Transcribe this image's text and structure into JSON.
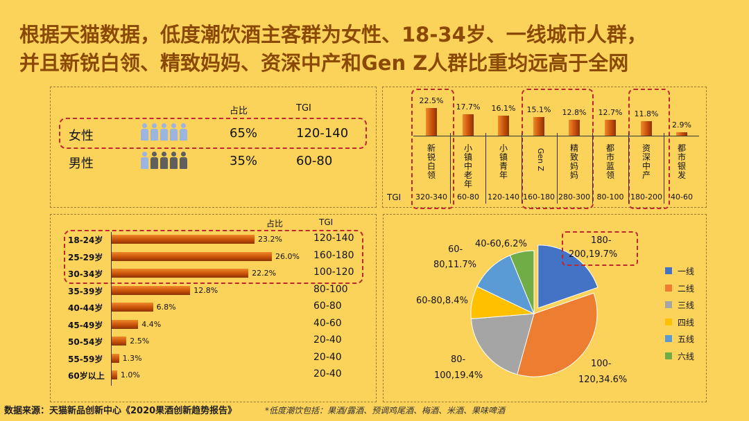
{
  "title": {
    "line1": "根据天猫数据，低度潮饮酒主客群为女性、18-34岁、一线城市人群，",
    "line2": "并且新锐白领、精致妈妈、资深中产和Gen Z人群比重均远高于全网"
  },
  "gender": {
    "col_share": "占比",
    "col_tgi": "TGI",
    "rows": [
      {
        "label": "女性",
        "share": "65%",
        "tgi": "120-140",
        "filled": 5
      },
      {
        "label": "男性",
        "share": "35%",
        "tgi": "60-80",
        "filled": 1
      }
    ],
    "person_colors": {
      "highlight": "#9BB4E0",
      "muted": "#5F5F5F"
    }
  },
  "age": {
    "col_share": "占比",
    "col_tgi": "TGI"
  },
  "segments": {
    "tgi_label": "TGI"
  },
  "pie": {
    "slice_labels": [
      {
        "l1": "180-",
        "l2": "200,19.7%"
      },
      {
        "l1": "100-",
        "l2": "120,34.6%"
      },
      {
        "l1": "80-",
        "l2": "100,19.4%"
      },
      {
        "l1": "60-80,8.4%",
        "l2": ""
      },
      {
        "l1": "60-",
        "l2": "80,11.7%"
      },
      {
        "l1": "40-60,6.2%",
        "l2": ""
      }
    ]
  },
  "footer": {
    "source": "数据来源：天猫新品创新中心《2020果酒创新趋势报告》",
    "note": "*低度潮饮包括：果酒/露酒、预调鸡尾酒、梅酒、米酒、果味啤酒"
  },
  "chart_data": [
    {
      "type": "bar",
      "orientation": "vertical",
      "categories": [
        "新锐白领",
        "小镇中老年",
        "小镇青年",
        "Gen Z",
        "精致妈妈",
        "都市蓝领",
        "资深中产",
        "都市银发"
      ],
      "values": [
        22.5,
        17.7,
        16.1,
        15.1,
        12.8,
        12.7,
        11.8,
        2.9
      ],
      "value_labels": [
        "22.5%",
        "17.7%",
        "16.1%",
        "15.1%",
        "12.8%",
        "12.7%",
        "11.8%",
        "2.9%"
      ],
      "tgi": [
        "320-340",
        "60-80",
        "120-140",
        "160-180",
        "280-300",
        "80-100",
        "180-200",
        "40-60"
      ],
      "ylim": [
        0,
        25
      ]
    },
    {
      "type": "bar",
      "orientation": "horizontal",
      "categories": [
        "18-24岁",
        "25-29岁",
        "30-34岁",
        "35-39岁",
        "40-44岁",
        "45-49岁",
        "50-54岁",
        "55-59岁",
        "60岁以上"
      ],
      "values": [
        23.2,
        26.0,
        22.2,
        12.8,
        6.8,
        4.4,
        2.5,
        1.3,
        1.0
      ],
      "value_labels": [
        "23.2%",
        "26.0%",
        "22.2%",
        "12.8%",
        "6.8%",
        "4.4%",
        "2.5%",
        "1.3%",
        "1.0%"
      ],
      "tgi": [
        "120-140",
        "160-180",
        "100-120",
        "80-100",
        "60-80",
        "40-60",
        "20-40",
        "20-40",
        "20-40"
      ],
      "xlim": [
        0,
        30
      ]
    },
    {
      "type": "pie",
      "categories": [
        "一线",
        "二线",
        "三线",
        "四线",
        "五线",
        "六线"
      ],
      "values": [
        19.7,
        34.6,
        19.4,
        8.4,
        11.7,
        6.2
      ],
      "tgi": [
        "180-200",
        "100-120",
        "80-100",
        "60-80",
        "60-80",
        "40-60"
      ],
      "colors": [
        "#4472C4",
        "#ED7D31",
        "#A5A5A5",
        "#FFC000",
        "#5B9BD5",
        "#70AD47"
      ],
      "legend": "right"
    }
  ]
}
